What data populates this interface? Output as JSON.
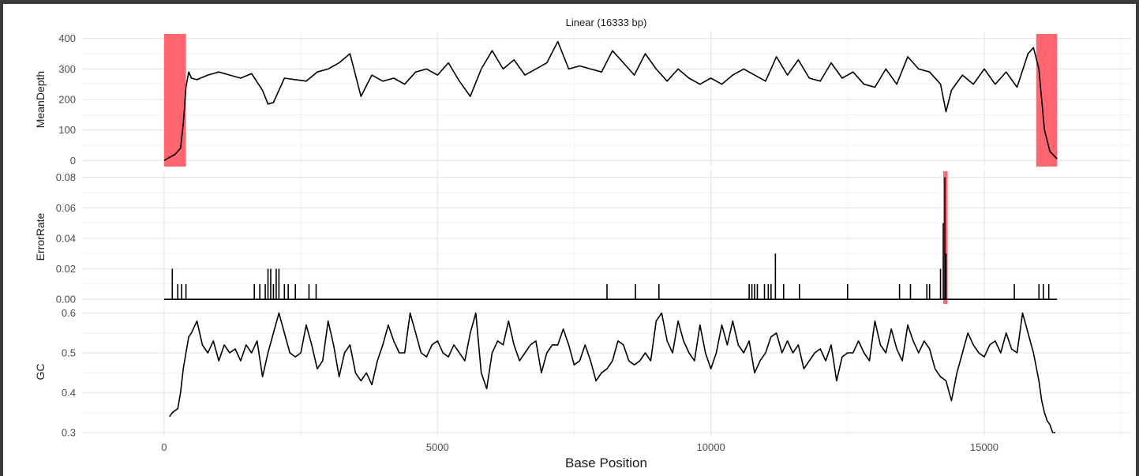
{
  "chart_data": {
    "type": "line",
    "title": "Linear (16333 bp)",
    "xlabel": "Base Position",
    "xlim": [
      -1500,
      17700
    ],
    "x_ticks": [
      0,
      5000,
      10000,
      15000
    ],
    "x_tick_labels": [
      "0",
      "5000",
      "10000",
      "15000"
    ],
    "grid": true,
    "panels": [
      {
        "name": "MeanDepth",
        "ylabel": "MeanDepth",
        "ylim": [
          -20,
          420
        ],
        "y_ticks": [
          0,
          100,
          200,
          300,
          400
        ],
        "y_tick_labels": [
          "0",
          "100",
          "200",
          "300",
          "400"
        ],
        "highlight_color": "#ff6670",
        "highlights": [
          [
            0,
            400
          ],
          [
            15950,
            16333
          ]
        ],
        "series": {
          "x": [
            0,
            100,
            200,
            300,
            350,
            400,
            450,
            500,
            600,
            800,
            1000,
            1200,
            1400,
            1600,
            1800,
            1900,
            2000,
            2200,
            2400,
            2600,
            2800,
            3000,
            3200,
            3400,
            3600,
            3800,
            4000,
            4200,
            4400,
            4600,
            4800,
            5000,
            5200,
            5400,
            5600,
            5800,
            6000,
            6200,
            6400,
            6600,
            6800,
            7000,
            7200,
            7400,
            7600,
            7800,
            8000,
            8200,
            8400,
            8600,
            8800,
            9000,
            9200,
            9400,
            9600,
            9800,
            10000,
            10200,
            10400,
            10600,
            10800,
            11000,
            11200,
            11400,
            11600,
            11800,
            12000,
            12200,
            12400,
            12600,
            12800,
            13000,
            13200,
            13400,
            13600,
            13800,
            14000,
            14200,
            14300,
            14400,
            14600,
            14800,
            15000,
            15200,
            15400,
            15600,
            15800,
            15900,
            16000,
            16100,
            16200,
            16333
          ],
          "values": [
            0,
            10,
            20,
            40,
            120,
            240,
            290,
            270,
            265,
            280,
            290,
            280,
            270,
            285,
            230,
            185,
            190,
            270,
            265,
            260,
            290,
            300,
            320,
            350,
            210,
            280,
            260,
            270,
            250,
            290,
            300,
            280,
            320,
            260,
            210,
            300,
            360,
            300,
            330,
            280,
            300,
            320,
            390,
            300,
            310,
            300,
            290,
            360,
            320,
            280,
            350,
            300,
            260,
            300,
            270,
            250,
            270,
            250,
            280,
            300,
            280,
            260,
            340,
            280,
            330,
            270,
            260,
            320,
            270,
            290,
            250,
            240,
            300,
            250,
            340,
            300,
            290,
            250,
            160,
            230,
            280,
            250,
            300,
            250,
            290,
            240,
            350,
            370,
            300,
            100,
            30,
            5
          ]
        }
      },
      {
        "name": "ErrorRate",
        "ylabel": "ErrorRate",
        "ylim": [
          -0.003,
          0.085
        ],
        "y_ticks": [
          0.0,
          0.02,
          0.04,
          0.06,
          0.08
        ],
        "y_tick_labels": [
          "0.00",
          "0.02",
          "0.04",
          "0.06",
          "0.08"
        ],
        "highlight_color": "#ff6670",
        "highlights": [
          [
            14250,
            14330
          ]
        ],
        "series": {
          "x": [
            150,
            250,
            320,
            400,
            1650,
            1750,
            1850,
            1900,
            1950,
            2000,
            2050,
            2100,
            2200,
            2270,
            2400,
            2650,
            2780,
            8100,
            8620,
            9050,
            10700,
            10750,
            10800,
            10850,
            10980,
            11050,
            11100,
            11180,
            11330,
            11620,
            12500,
            13450,
            13650,
            13950,
            14000,
            14200,
            14250,
            14280,
            14300,
            15550,
            16000,
            16080,
            16180
          ],
          "values": [
            0.02,
            0.01,
            0.01,
            0.01,
            0.01,
            0.01,
            0.01,
            0.02,
            0.02,
            0.01,
            0.02,
            0.02,
            0.01,
            0.01,
            0.01,
            0.01,
            0.01,
            0.01,
            0.01,
            0.01,
            0.01,
            0.01,
            0.01,
            0.01,
            0.01,
            0.01,
            0.01,
            0.03,
            0.01,
            0.01,
            0.01,
            0.01,
            0.01,
            0.01,
            0.01,
            0.02,
            0.05,
            0.08,
            0.03,
            0.01,
            0.01,
            0.01,
            0.01
          ]
        }
      },
      {
        "name": "GC",
        "ylabel": "GC",
        "ylim": [
          0.29,
          0.615
        ],
        "y_ticks": [
          0.3,
          0.4,
          0.5,
          0.6
        ],
        "y_tick_labels": [
          "0.3",
          "0.4",
          "0.5",
          "0.6"
        ],
        "highlight_color": "",
        "highlights": [],
        "series": {
          "x": [
            100,
            150,
            250,
            300,
            350,
            400,
            450,
            500,
            600,
            700,
            800,
            900,
            1000,
            1100,
            1200,
            1300,
            1400,
            1500,
            1600,
            1700,
            1800,
            1900,
            2000,
            2100,
            2200,
            2300,
            2400,
            2500,
            2600,
            2700,
            2800,
            2900,
            3000,
            3100,
            3200,
            3300,
            3400,
            3500,
            3600,
            3700,
            3800,
            3900,
            4000,
            4100,
            4200,
            4300,
            4400,
            4500,
            4600,
            4700,
            4800,
            4900,
            5000,
            5100,
            5200,
            5300,
            5400,
            5500,
            5600,
            5700,
            5800,
            5900,
            6000,
            6100,
            6200,
            6300,
            6400,
            6500,
            6600,
            6700,
            6800,
            6900,
            7000,
            7100,
            7200,
            7300,
            7400,
            7500,
            7600,
            7700,
            7800,
            7900,
            8000,
            8100,
            8200,
            8300,
            8400,
            8500,
            8600,
            8700,
            8800,
            8900,
            9000,
            9100,
            9200,
            9300,
            9400,
            9500,
            9600,
            9700,
            9800,
            9900,
            10000,
            10100,
            10200,
            10300,
            10400,
            10500,
            10600,
            10700,
            10800,
            10900,
            11000,
            11100,
            11200,
            11300,
            11400,
            11500,
            11600,
            11700,
            11800,
            11900,
            12000,
            12100,
            12200,
            12300,
            12400,
            12500,
            12600,
            12700,
            12800,
            12900,
            13000,
            13100,
            13200,
            13300,
            13400,
            13500,
            13600,
            13700,
            13800,
            13900,
            14000,
            14100,
            14200,
            14300,
            14400,
            14500,
            14600,
            14700,
            14800,
            14900,
            15000,
            15100,
            15200,
            15300,
            15400,
            15500,
            15600,
            15700,
            15800,
            15900,
            16000,
            16050,
            16100,
            16150,
            16200,
            16250,
            16300
          ],
          "values": [
            0.34,
            0.35,
            0.36,
            0.4,
            0.46,
            0.5,
            0.54,
            0.55,
            0.58,
            0.52,
            0.5,
            0.53,
            0.48,
            0.52,
            0.5,
            0.51,
            0.48,
            0.52,
            0.5,
            0.53,
            0.44,
            0.5,
            0.55,
            0.6,
            0.55,
            0.5,
            0.49,
            0.5,
            0.57,
            0.52,
            0.46,
            0.48,
            0.58,
            0.52,
            0.44,
            0.5,
            0.52,
            0.45,
            0.43,
            0.45,
            0.42,
            0.48,
            0.52,
            0.57,
            0.53,
            0.5,
            0.5,
            0.6,
            0.55,
            0.5,
            0.49,
            0.52,
            0.53,
            0.5,
            0.49,
            0.52,
            0.5,
            0.48,
            0.55,
            0.6,
            0.45,
            0.41,
            0.5,
            0.53,
            0.52,
            0.58,
            0.52,
            0.48,
            0.5,
            0.52,
            0.53,
            0.45,
            0.5,
            0.52,
            0.52,
            0.56,
            0.52,
            0.47,
            0.48,
            0.52,
            0.48,
            0.43,
            0.45,
            0.46,
            0.48,
            0.53,
            0.52,
            0.48,
            0.47,
            0.48,
            0.5,
            0.48,
            0.58,
            0.6,
            0.53,
            0.5,
            0.58,
            0.53,
            0.5,
            0.48,
            0.57,
            0.5,
            0.46,
            0.5,
            0.57,
            0.52,
            0.58,
            0.52,
            0.5,
            0.53,
            0.45,
            0.48,
            0.5,
            0.54,
            0.55,
            0.5,
            0.53,
            0.5,
            0.52,
            0.46,
            0.48,
            0.5,
            0.51,
            0.48,
            0.52,
            0.43,
            0.49,
            0.5,
            0.5,
            0.53,
            0.5,
            0.48,
            0.58,
            0.52,
            0.5,
            0.56,
            0.51,
            0.48,
            0.57,
            0.53,
            0.5,
            0.53,
            0.51,
            0.46,
            0.44,
            0.43,
            0.38,
            0.45,
            0.5,
            0.55,
            0.52,
            0.5,
            0.49,
            0.52,
            0.53,
            0.5,
            0.55,
            0.51,
            0.5,
            0.6,
            0.55,
            0.5,
            0.43,
            0.38,
            0.35,
            0.33,
            0.32,
            0.3,
            0.3
          ]
        }
      }
    ]
  }
}
